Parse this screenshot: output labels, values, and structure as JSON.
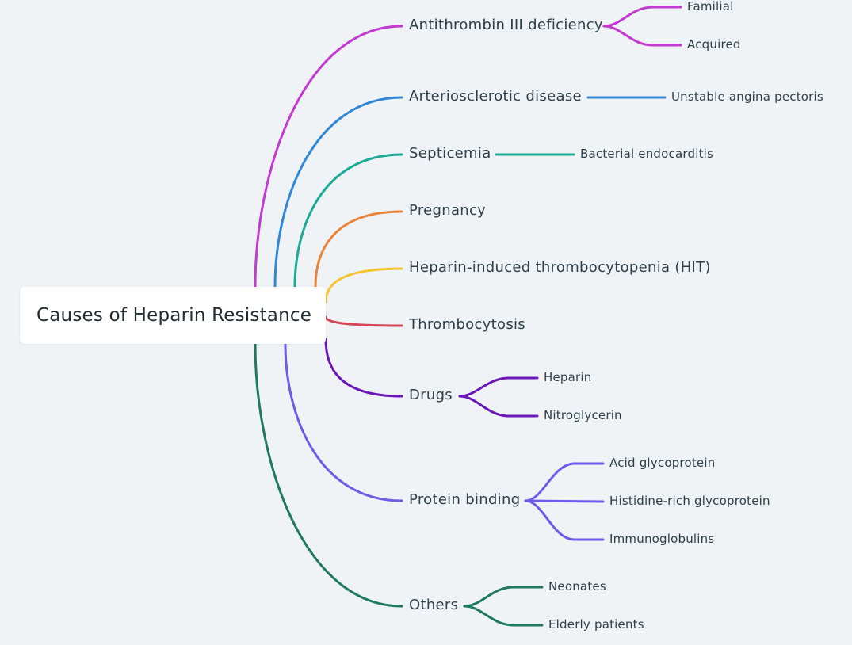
{
  "root": {
    "label": "Causes of Heparin Resistance"
  },
  "branches": [
    {
      "label": "Antithrombin III deficiency",
      "color": "#c23ad0",
      "children": [
        "Familial",
        "Acquired"
      ]
    },
    {
      "label": "Arteriosclerotic disease",
      "color": "#2f87d6",
      "children": [
        "Unstable angina pectoris"
      ]
    },
    {
      "label": "Septicemia",
      "color": "#1aaa96",
      "children": [
        "Bacterial endocarditis"
      ]
    },
    {
      "label": "Pregnancy",
      "color": "#eb8339",
      "children": []
    },
    {
      "label": "Heparin-induced thrombocytopenia (HIT)",
      "color": "#f4c431",
      "children": []
    },
    {
      "label": "Thrombocytosis",
      "color": "#d24656",
      "children": []
    },
    {
      "label": "Drugs",
      "color": "#6a17b5",
      "children": [
        "Heparin",
        "Nitroglycerin"
      ]
    },
    {
      "label": "Protein binding",
      "color": "#6c5ce7",
      "children": [
        "Acid glycoprotein",
        "Histidine-rich glycoprotein",
        "Immunoglobulins"
      ]
    },
    {
      "label": "Others",
      "color": "#1f7a5c",
      "children": [
        "Neonates",
        "Elderly patients"
      ]
    }
  ]
}
